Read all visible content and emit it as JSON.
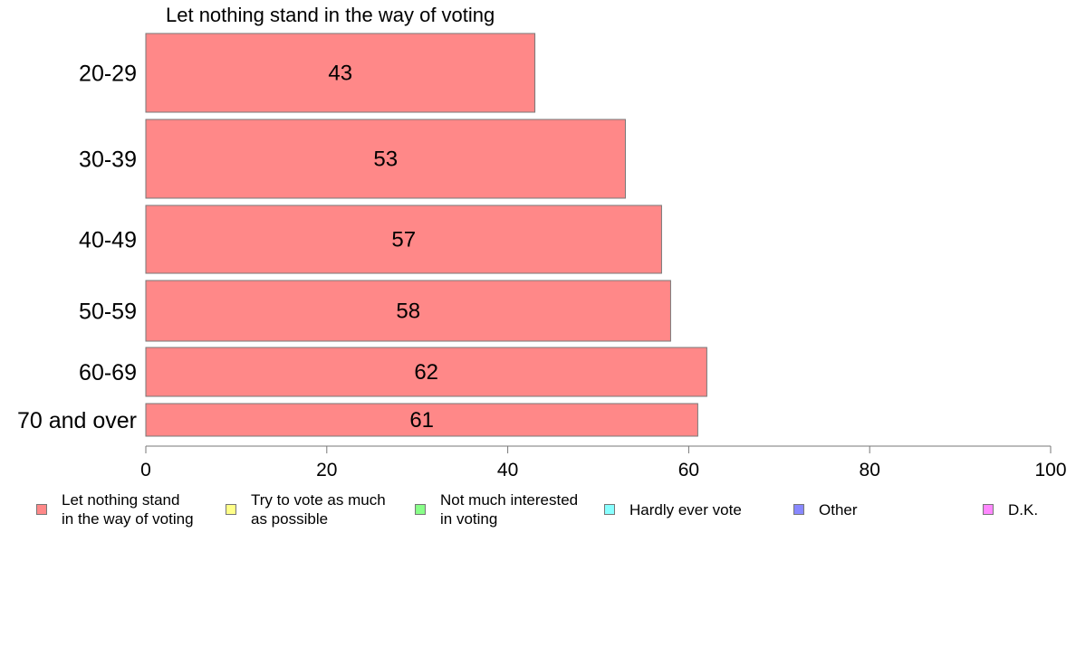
{
  "chart_data": {
    "type": "bar",
    "orientation": "horizontal",
    "title": "Let nothing stand in the way of voting",
    "categories": [
      "20-29",
      "30-39",
      "40-49",
      "50-59",
      "60-69",
      "70 and over"
    ],
    "values": [
      43,
      53,
      57,
      58,
      62,
      61
    ],
    "data_labels": [
      "43",
      "53",
      "57",
      "58",
      "62",
      "61"
    ],
    "xlim": [
      0,
      100
    ],
    "x_ticks": [
      0,
      20,
      40,
      60,
      80,
      100
    ],
    "x_tick_labels": [
      "0",
      "20",
      "40",
      "60",
      "80",
      "100"
    ],
    "grid": false,
    "bar_color": "#ff8888",
    "legend_position": "bottom",
    "legend": [
      {
        "label": "Let nothing stand\nin the way of voting",
        "color": "#ff8888"
      },
      {
        "label": "Try to vote as much\nas possible",
        "color": "#ffff88"
      },
      {
        "label": "Not much interested\nin voting",
        "color": "#88ff88"
      },
      {
        "label": "Hardly ever vote",
        "color": "#88ffff"
      },
      {
        "label": "Other",
        "color": "#8888ff"
      },
      {
        "label": "D.K.",
        "color": "#ff88ff"
      }
    ]
  }
}
